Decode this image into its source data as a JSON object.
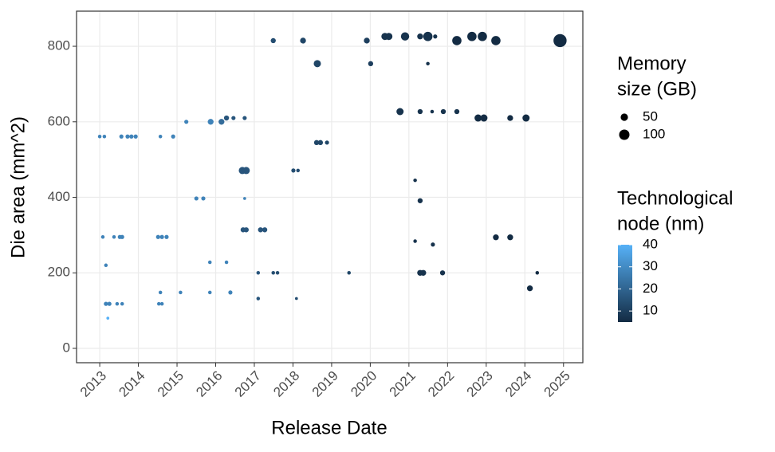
{
  "chart_data": {
    "type": "scatter",
    "xlabel": "Release Date",
    "ylabel": "Die area (mm^2)",
    "x": [
      2013.0,
      2013.12,
      2013.08,
      2013.16,
      2013.16,
      2013.25,
      2013.21,
      2013.37,
      2013.52,
      2013.58,
      2013.56,
      2013.72,
      2013.82,
      2013.93,
      2013.45,
      2013.58,
      2014.57,
      2014.51,
      2014.61,
      2014.73,
      2014.57,
      2014.53,
      2014.61,
      2014.9,
      2015.09,
      2015.24,
      2015.5,
      2015.68,
      2015.87,
      2015.85,
      2015.85,
      2016.15,
      2016.28,
      2016.38,
      2016.28,
      2016.46,
      2016.75,
      2016.69,
      2016.79,
      2016.75,
      2016.71,
      2016.79,
      2017.1,
      2017.1,
      2017.16,
      2017.27,
      2017.49,
      2017.49,
      2017.6,
      2018.01,
      2018.13,
      2018.09,
      2018.26,
      2018.63,
      2018.61,
      2018.71,
      2018.88,
      2019.45,
      2019.91,
      2020.01,
      2020.38,
      2020.48,
      2020.77,
      2020.9,
      2021.16,
      2021.16,
      2021.29,
      2021.29,
      2021.29,
      2021.29,
      2021.37,
      2021.49,
      2021.49,
      2021.6,
      2021.62,
      2021.68,
      2021.89,
      2021.87,
      2022.24,
      2022.24,
      2022.63,
      2022.9,
      2022.79,
      2022.94,
      2023.25,
      2023.25,
      2023.62,
      2023.62,
      2024.03,
      2024.13,
      2024.32,
      2024.91
    ],
    "y": [
      561,
      561,
      295,
      220,
      118,
      118,
      80,
      295,
      295,
      295,
      561,
      561,
      561,
      561,
      118,
      118,
      561,
      295,
      295,
      295,
      148,
      118,
      118,
      561,
      148,
      600,
      397,
      397,
      600,
      228,
      148,
      600,
      228,
      148,
      610,
      610,
      610,
      471,
      471,
      397,
      314,
      314,
      200,
      132,
      314,
      314,
      815,
      200,
      200,
      471,
      471,
      132,
      815,
      754,
      545,
      545,
      545,
      200,
      815,
      754,
      826,
      826,
      627,
      826,
      445,
      284,
      826,
      627,
      391,
      200,
      200,
      826,
      754,
      627,
      275,
      826,
      627,
      200,
      815,
      627,
      826,
      826,
      610,
      610,
      815,
      294,
      294,
      610,
      610,
      159,
      200,
      815
    ],
    "size": [
      12,
      12,
      12,
      12,
      16,
      16,
      8,
      12,
      16,
      16,
      16,
      16,
      16,
      16,
      12,
      12,
      12,
      16,
      16,
      16,
      12,
      12,
      12,
      16,
      12,
      16,
      16,
      16,
      32,
      12,
      12,
      32,
      12,
      16,
      24,
      16,
      16,
      48,
      48,
      8,
      24,
      24,
      12,
      12,
      24,
      24,
      24,
      12,
      12,
      16,
      12,
      8,
      32,
      48,
      24,
      24,
      16,
      12,
      32,
      24,
      48,
      48,
      48,
      64,
      12,
      12,
      32,
      24,
      24,
      32,
      32,
      80,
      12,
      12,
      16,
      16,
      24,
      24,
      80,
      24,
      80,
      80,
      48,
      48,
      80,
      32,
      32,
      32,
      48,
      32,
      12,
      160
    ],
    "node": [
      28,
      28,
      28,
      28,
      28,
      28,
      40,
      28,
      28,
      28,
      28,
      28,
      28,
      28,
      28,
      28,
      28,
      28,
      28,
      28,
      28,
      28,
      28,
      28,
      28,
      28,
      28,
      28,
      28,
      28,
      28,
      22,
      28,
      28,
      16,
      16,
      16,
      16,
      16,
      28,
      16,
      16,
      16,
      16,
      16,
      16,
      14,
      14,
      14,
      14,
      14,
      14,
      12,
      12,
      12,
      12,
      12,
      12,
      10,
      10,
      7,
      7,
      7,
      7,
      7,
      7,
      7,
      7,
      7,
      7,
      7,
      7,
      7,
      7,
      7,
      7,
      7,
      7,
      5,
      7,
      5,
      5,
      5,
      5,
      5,
      5,
      5,
      5,
      5,
      5,
      5,
      5
    ],
    "xlim": [
      2012.4,
      2025.5
    ],
    "xticks": [
      2013,
      2014,
      2015,
      2016,
      2017,
      2018,
      2019,
      2020,
      2021,
      2022,
      2023,
      2024,
      2025
    ],
    "ylim": [
      -38,
      893
    ],
    "yticks": [
      0,
      200,
      400,
      600,
      800
    ],
    "grid": true,
    "size_legend": {
      "title": [
        "Memory",
        "size (GB)"
      ],
      "breaks": [
        50,
        100
      ]
    },
    "color_legend": {
      "title": [
        "Technological",
        "node (nm)"
      ],
      "breaks": [
        10,
        20,
        30,
        40
      ],
      "colorlim": [
        5,
        40
      ],
      "colors": [
        "#132B43",
        "#56B1F7"
      ]
    }
  }
}
